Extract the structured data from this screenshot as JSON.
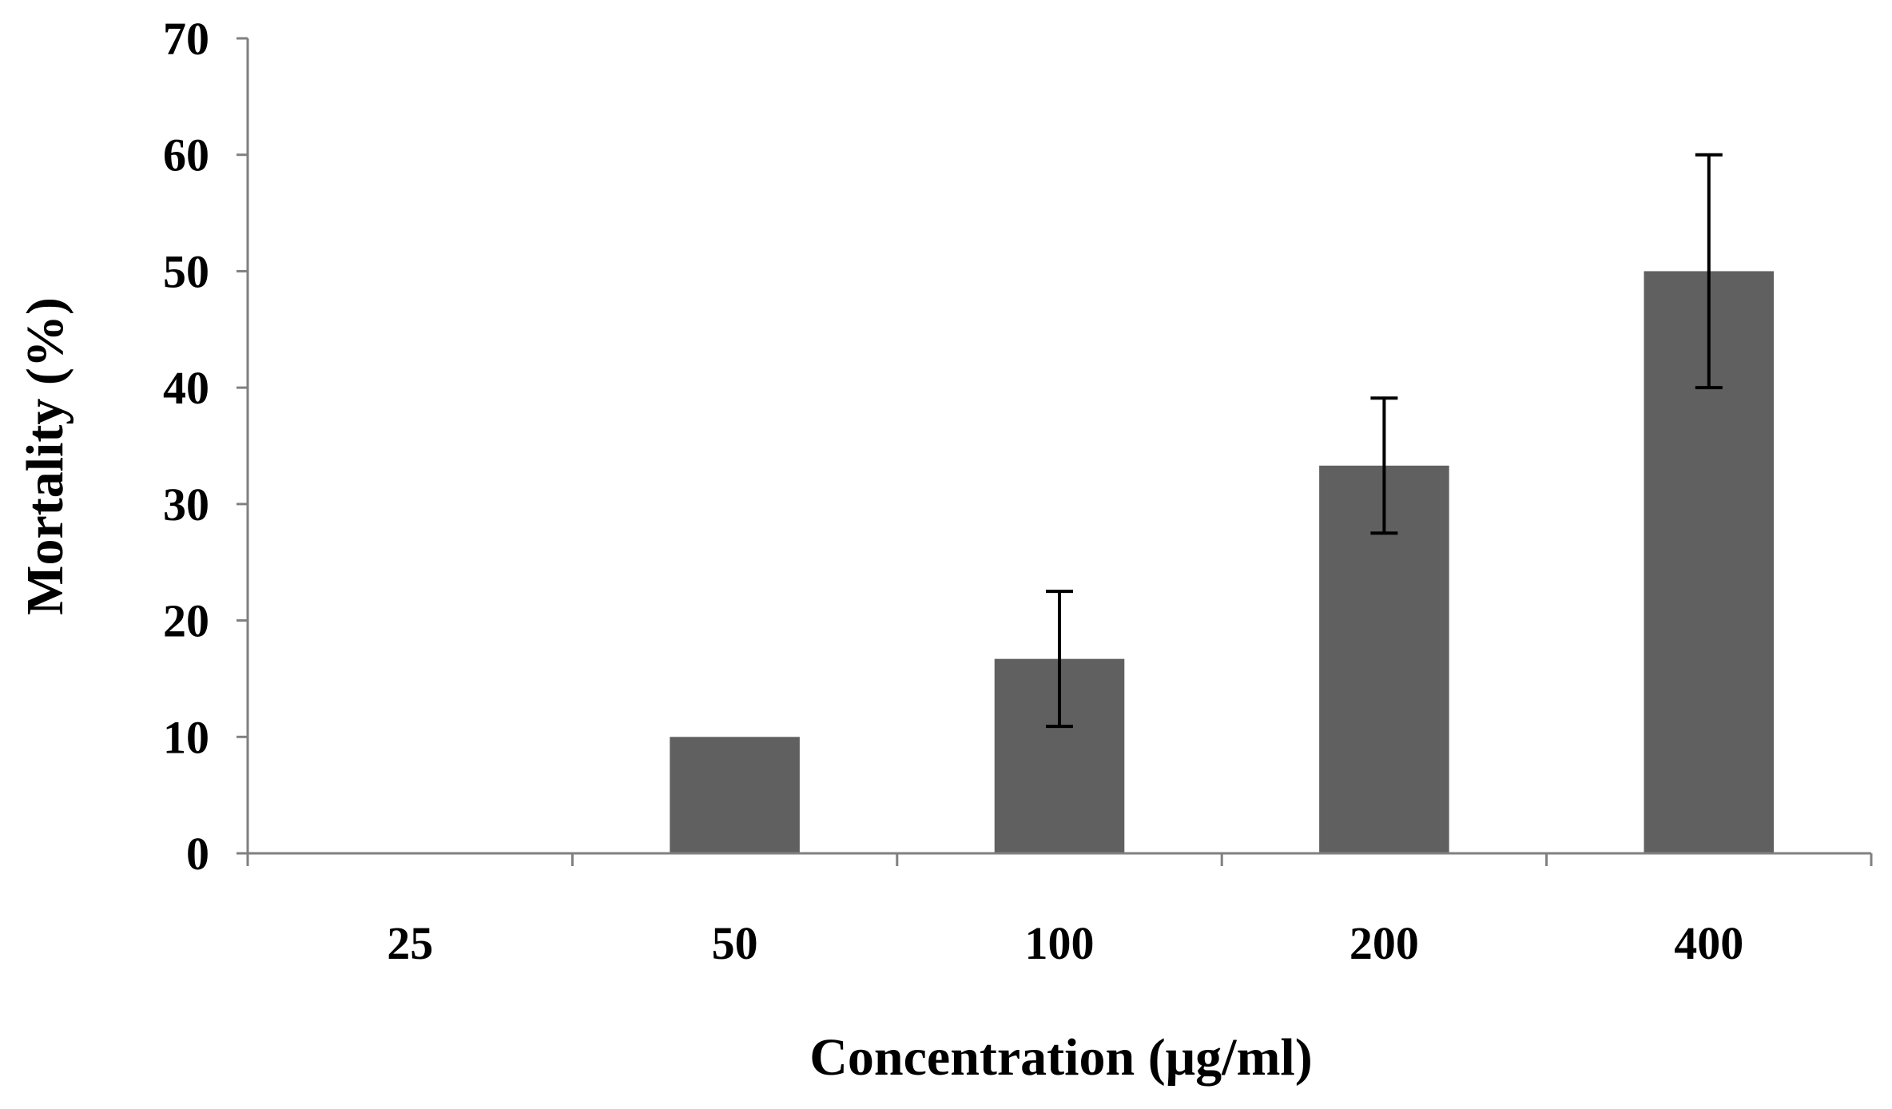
{
  "chart_data": {
    "type": "bar",
    "title": "",
    "xlabel": "Concentration (μg/ml)",
    "ylabel": "Mortality (%)",
    "categories": [
      "25",
      "50",
      "100",
      "200",
      "400"
    ],
    "values": [
      0,
      10,
      16.7,
      33.3,
      50
    ],
    "errors": [
      null,
      null,
      5.8,
      5.8,
      10
    ],
    "ylim": [
      0,
      70
    ],
    "yticks": [
      "0",
      "10",
      "20",
      "30",
      "40",
      "50",
      "60",
      "70"
    ],
    "grid": false,
    "colors": {
      "bar": "#606060",
      "axis": "#808080",
      "error": "#000000"
    }
  }
}
